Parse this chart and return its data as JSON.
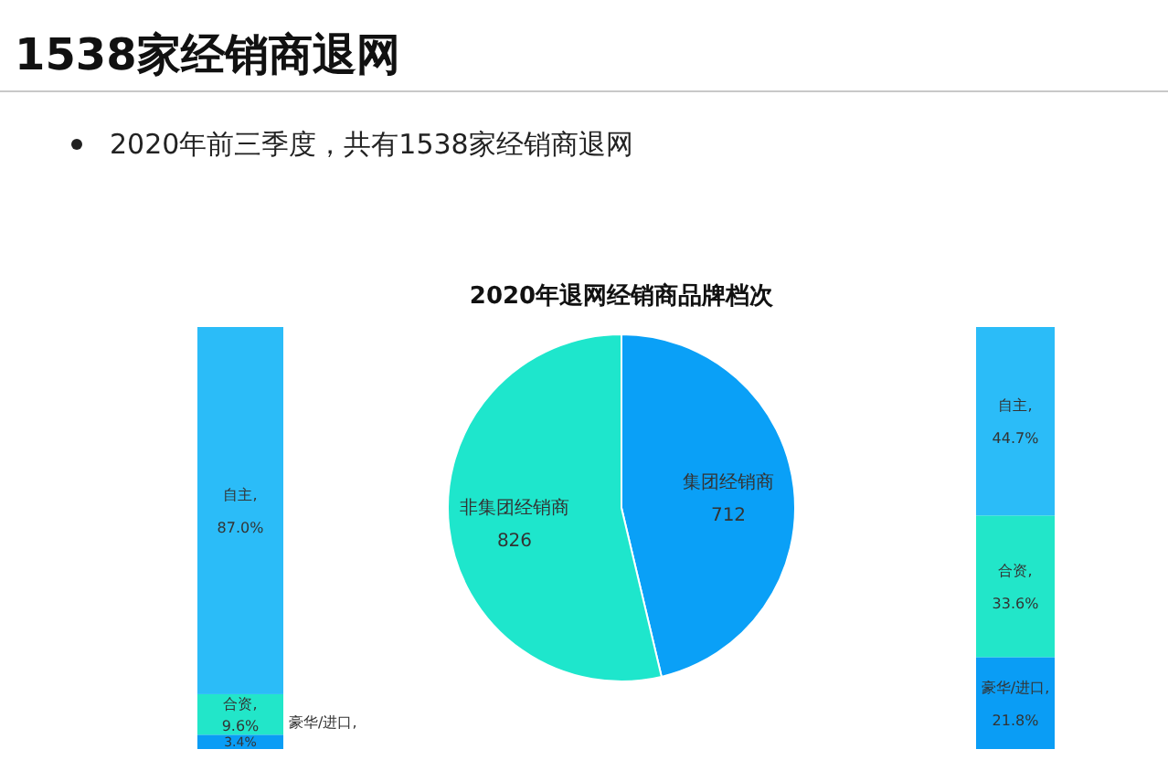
{
  "chart_data": [
    {
      "type": "other",
      "title": "1538家经销商退网",
      "subtitle": "2020年前三季度，共有1538家经销商退网"
    },
    {
      "type": "bar",
      "stacked": true,
      "categories": [
        null
      ],
      "series": [
        {
          "name": "豪华/进口,",
          "color": "#0a9df5",
          "values": [
            3.4
          ],
          "value_labels": [
            "3.4%"
          ]
        },
        {
          "name": "合资,",
          "color": "#22e6c9",
          "values": [
            9.6
          ],
          "value_labels": [
            "9.6%"
          ]
        },
        {
          "name": "自主,",
          "color": "#2bbcf8",
          "values": [
            87.0
          ],
          "value_labels": [
            "87.0%"
          ]
        }
      ]
    },
    {
      "type": "pie",
      "title": "2020年退网经销商品牌档次",
      "categories": [
        "集团经销商",
        "非集团经销商"
      ],
      "values": [
        712,
        826
      ],
      "colors": [
        "#0aa0f7",
        "#1ee6cc"
      ],
      "data_labels": true
    },
    {
      "type": "bar",
      "stacked": true,
      "categories": [
        null
      ],
      "series": [
        {
          "name": "豪华/进口,",
          "color": "#0a9df5",
          "values": [
            21.8
          ],
          "value_labels": [
            "21.8%"
          ]
        },
        {
          "name": "合资,",
          "color": "#22e6c9",
          "values": [
            33.6
          ],
          "value_labels": [
            "33.6%"
          ]
        },
        {
          "name": "自主,",
          "color": "#2bbcf8",
          "values": [
            44.7
          ],
          "value_labels": [
            "44.7%"
          ]
        }
      ]
    }
  ]
}
